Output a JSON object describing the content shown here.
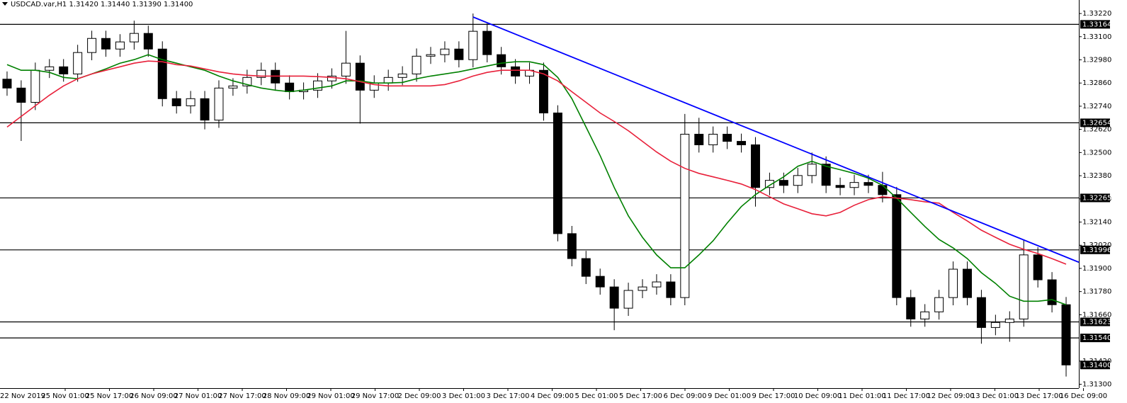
{
  "chart_data": {
    "type": "candlestick",
    "title": "USDCAD.var,H1  1.31420 1.31440 1.31390 1.31400",
    "ylim": [
      1.3128,
      1.3329
    ],
    "yticks": [
      {
        "value": 1.3322,
        "label": "1.33220"
      },
      {
        "value": 1.331,
        "label": "1.33100"
      },
      {
        "value": 1.3298,
        "label": "1.32980"
      },
      {
        "value": 1.3286,
        "label": "1.32860"
      },
      {
        "value": 1.3274,
        "label": "1.32740"
      },
      {
        "value": 1.3262,
        "label": "1.32620"
      },
      {
        "value": 1.325,
        "label": "1.32500"
      },
      {
        "value": 1.3238,
        "label": "1.32380"
      },
      {
        "value": 1.3226,
        "label": "1.32260"
      },
      {
        "value": 1.3214,
        "label": "1.32140"
      },
      {
        "value": 1.3202,
        "label": "1.32020"
      },
      {
        "value": 1.319,
        "label": "1.31900"
      },
      {
        "value": 1.3178,
        "label": "1.31780"
      },
      {
        "value": 1.3166,
        "label": "1.31660"
      },
      {
        "value": 1.3142,
        "label": "1.31420"
      },
      {
        "value": 1.313,
        "label": "1.31300"
      }
    ],
    "x_labels": [
      "22 Nov 2019",
      "25 Nov 01:00",
      "25 Nov 17:00",
      "26 Nov 09:00",
      "27 Nov 01:00",
      "27 Nov 17:00",
      "28 Nov 09:00",
      "29 Nov 01:00",
      "29 Nov 17:00",
      "2 Dec 09:00",
      "3 Dec 01:00",
      "3 Dec 17:00",
      "4 Dec 09:00",
      "5 Dec 01:00",
      "5 Dec 17:00",
      "6 Dec 09:00",
      "9 Dec 01:00",
      "9 Dec 17:00",
      "10 Dec 09:00",
      "11 Dec 01:00",
      "11 Dec 17:00",
      "12 Dec 09:00",
      "13 Dec 01:00",
      "13 Dec 17:00",
      "16 Dec 09:00"
    ],
    "open": [
      1.3288,
      1.32834,
      1.3276,
      1.32926,
      1.32944,
      1.32907,
      1.33018,
      1.33091,
      1.33036,
      1.33073,
      1.33117,
      1.33036,
      1.32779,
      1.32742,
      1.32779,
      1.32668,
      1.32834,
      1.32845,
      1.32889,
      1.32926,
      1.3286,
      1.32815,
      1.32823,
      1.32871,
      1.32896,
      1.32963,
      1.32823,
      1.3286,
      1.32889,
      1.32907,
      1.32999,
      1.33007,
      1.33036,
      1.32981,
      1.33128,
      1.33007,
      1.32944,
      1.32896,
      1.32926,
      1.32705,
      1.3208,
      1.31951,
      1.31859,
      1.31804,
      1.31694,
      1.31786,
      1.31804,
      1.3183,
      1.31749,
      1.32595,
      1.3254,
      1.32595,
      1.32558,
      1.3254,
      1.32319,
      1.32356,
      1.3233,
      1.32381,
      1.3244,
      1.3233,
      1.32319,
      1.32345,
      1.3233,
      1.32282,
      1.31749,
      1.31638,
      1.31675,
      1.31749,
      1.31896,
      1.31749,
      1.31594,
      1.3162,
      1.31638,
      1.3197,
      1.31841,
      1.31712
    ],
    "high": [
      1.3292,
      1.32874,
      1.32966,
      1.32984,
      1.32984,
      1.33058,
      1.33131,
      1.33131,
      1.33113,
      1.33183,
      1.33157,
      1.33076,
      1.32819,
      1.32819,
      1.32819,
      1.32874,
      1.32885,
      1.32929,
      1.32966,
      1.32966,
      1.329,
      1.32863,
      1.32911,
      1.32936,
      1.3313,
      1.33003,
      1.329,
      1.32929,
      1.32947,
      1.33039,
      1.33047,
      1.33076,
      1.33076,
      1.3322,
      1.33168,
      1.33047,
      1.32984,
      1.32966,
      1.32966,
      1.32745,
      1.3212,
      1.31991,
      1.31899,
      1.31844,
      1.31826,
      1.31844,
      1.3187,
      1.3187,
      1.327,
      1.3268,
      1.32635,
      1.32635,
      1.32598,
      1.3258,
      1.32396,
      1.32396,
      1.32421,
      1.325,
      1.3248,
      1.3237,
      1.32385,
      1.32385,
      1.324,
      1.32322,
      1.31789,
      1.31715,
      1.31789,
      1.31936,
      1.31936,
      1.31789,
      1.3166,
      1.31678,
      1.3205,
      1.3201,
      1.31881,
      1.31752
    ],
    "low": [
      1.32794,
      1.3256,
      1.3272,
      1.32886,
      1.32867,
      1.32867,
      1.32978,
      1.32996,
      1.32996,
      1.33033,
      1.32996,
      1.32739,
      1.32702,
      1.32702,
      1.3262,
      1.32628,
      1.32794,
      1.32805,
      1.32849,
      1.3282,
      1.32775,
      1.32775,
      1.32783,
      1.32831,
      1.32856,
      1.3265,
      1.32783,
      1.3282,
      1.32849,
      1.32867,
      1.32959,
      1.32967,
      1.32941,
      1.32941,
      1.32967,
      1.32904,
      1.32856,
      1.32856,
      1.32665,
      1.3204,
      1.31911,
      1.31819,
      1.31764,
      1.3158,
      1.31654,
      1.31746,
      1.31764,
      1.31709,
      1.31709,
      1.325,
      1.325,
      1.32518,
      1.325,
      1.3222,
      1.32279,
      1.3229,
      1.3229,
      1.32341,
      1.3229,
      1.32279,
      1.32279,
      1.3229,
      1.32242,
      1.31709,
      1.31598,
      1.31598,
      1.31635,
      1.31709,
      1.31709,
      1.3151,
      1.31554,
      1.3152,
      1.31598,
      1.31801,
      1.31672,
      1.3134
    ],
    "close": [
      1.32834,
      1.3276,
      1.32926,
      1.32944,
      1.32907,
      1.33018,
      1.33091,
      1.33036,
      1.33073,
      1.33117,
      1.33036,
      1.32779,
      1.32742,
      1.32779,
      1.32668,
      1.32834,
      1.32845,
      1.32889,
      1.32926,
      1.3286,
      1.32815,
      1.32823,
      1.32871,
      1.32896,
      1.32963,
      1.32823,
      1.3286,
      1.32889,
      1.32907,
      1.32999,
      1.33007,
      1.33036,
      1.32981,
      1.33128,
      1.33007,
      1.32944,
      1.32896,
      1.32926,
      1.32705,
      1.3208,
      1.31951,
      1.31859,
      1.31804,
      1.31694,
      1.31786,
      1.31804,
      1.3183,
      1.31749,
      1.32595,
      1.3254,
      1.32595,
      1.32558,
      1.3254,
      1.32319,
      1.32356,
      1.3233,
      1.32381,
      1.3244,
      1.3233,
      1.32319,
      1.32345,
      1.3233,
      1.32282,
      1.31749,
      1.31638,
      1.31675,
      1.31749,
      1.31896,
      1.31749,
      1.31594,
      1.3162,
      1.31638,
      1.3197,
      1.31841,
      1.31712,
      1.314
    ],
    "moving_averages": [
      {
        "color": "#008000",
        "values": [
          1.32955,
          1.32926,
          1.32926,
          1.32915,
          1.32889,
          1.32882,
          1.32907,
          1.32933,
          1.32963,
          1.32981,
          1.33007,
          1.32981,
          1.32963,
          1.32944,
          1.32926,
          1.32896,
          1.32871,
          1.32852,
          1.32834,
          1.32823,
          1.32815,
          1.32823,
          1.32834,
          1.32845,
          1.32871,
          1.32871,
          1.3286,
          1.3286,
          1.32863,
          1.32882,
          1.32896,
          1.32907,
          1.32918,
          1.32933,
          1.32948,
          1.32963,
          1.3297,
          1.3297,
          1.32955,
          1.32889,
          1.32779,
          1.32632,
          1.32484,
          1.32319,
          1.32172,
          1.32061,
          1.3197,
          1.31903,
          1.31903,
          1.3197,
          1.32043,
          1.32135,
          1.3222,
          1.32282,
          1.3233,
          1.32374,
          1.32429,
          1.32455,
          1.32429,
          1.32411,
          1.32392,
          1.32367,
          1.3233,
          1.32264,
          1.3219,
          1.32117,
          1.3205,
          1.32006,
          1.31951,
          1.31878,
          1.31822,
          1.31756,
          1.3173,
          1.3173,
          1.31738,
          1.31712
        ]
      },
      {
        "color": "#e8203a",
        "values": [
          1.32632,
          1.32687,
          1.32742,
          1.32797,
          1.32845,
          1.32882,
          1.32907,
          1.32926,
          1.32944,
          1.32963,
          1.32974,
          1.3297,
          1.32955,
          1.32948,
          1.32933,
          1.32918,
          1.32907,
          1.329,
          1.32896,
          1.32896,
          1.32896,
          1.32896,
          1.32893,
          1.32889,
          1.32882,
          1.32867,
          1.32852,
          1.32845,
          1.32845,
          1.32845,
          1.32845,
          1.32852,
          1.32871,
          1.32896,
          1.32915,
          1.32926,
          1.32926,
          1.32926,
          1.32907,
          1.32871,
          1.32815,
          1.3276,
          1.32705,
          1.32661,
          1.32613,
          1.32558,
          1.32503,
          1.32455,
          1.32418,
          1.32392,
          1.32374,
          1.32356,
          1.32337,
          1.32308,
          1.32271,
          1.32234,
          1.32209,
          1.32183,
          1.32172,
          1.3219,
          1.32227,
          1.32256,
          1.32271,
          1.32264,
          1.32256,
          1.32245,
          1.32238,
          1.3219,
          1.32146,
          1.32098,
          1.32061,
          1.32025,
          1.31999,
          1.31977,
          1.31951,
          1.31922
        ]
      }
    ],
    "trendline": {
      "color": "#0000ff",
      "x": [
        33,
        76
      ],
      "values": [
        1.33202,
        1.31932
      ]
    },
    "levels": [
      {
        "value": 1.33164,
        "label": "1.33164"
      },
      {
        "value": 1.32654,
        "label": "1.32654"
      },
      {
        "value": 1.32265,
        "label": "1.32265"
      },
      {
        "value": 1.31996,
        "label": "1.31996"
      },
      {
        "value": 1.31623,
        "label": "1.31623"
      },
      {
        "value": 1.3154,
        "label": "1.31540"
      }
    ],
    "last_price": {
      "value": 1.314,
      "label": "1.31400"
    }
  }
}
